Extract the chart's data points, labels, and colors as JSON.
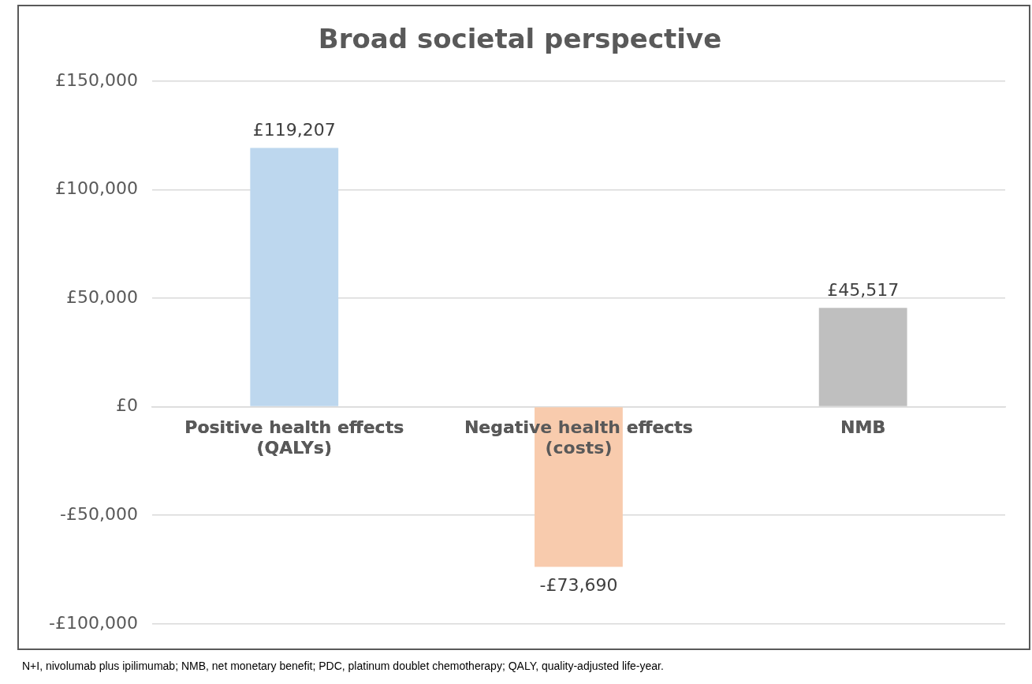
{
  "chart_data": {
    "type": "bar",
    "title": "Broad societal perspective",
    "categories": [
      "Positive health effects (QALYs)",
      "Negative health effects (costs)",
      "NMB"
    ],
    "values": [
      119207,
      -73690,
      45517
    ],
    "colors": [
      "#bdd7ee",
      "#f8cbad",
      "#bfbfbf"
    ],
    "value_labels": [
      "£119,207",
      "-£73,690",
      "£45,517"
    ],
    "ylim": [
      -100000,
      150000
    ],
    "yticks": [
      {
        "value": -100000,
        "label": "-£100,000"
      },
      {
        "value": -50000,
        "label": "-£50,000"
      },
      {
        "value": 0,
        "label": "£0"
      },
      {
        "value": 50000,
        "label": "£50,000"
      },
      {
        "value": 100000,
        "label": "£100,000"
      },
      {
        "value": 150000,
        "label": "£150,000"
      }
    ],
    "grid": "y",
    "legend": false,
    "annotations": [
      "N+I, nivolumab plus ipilimumab; NMB, net monetary benefit; PDC, platinum doublet chemotherapy; QALY, quality-adjusted life-year."
    ]
  }
}
